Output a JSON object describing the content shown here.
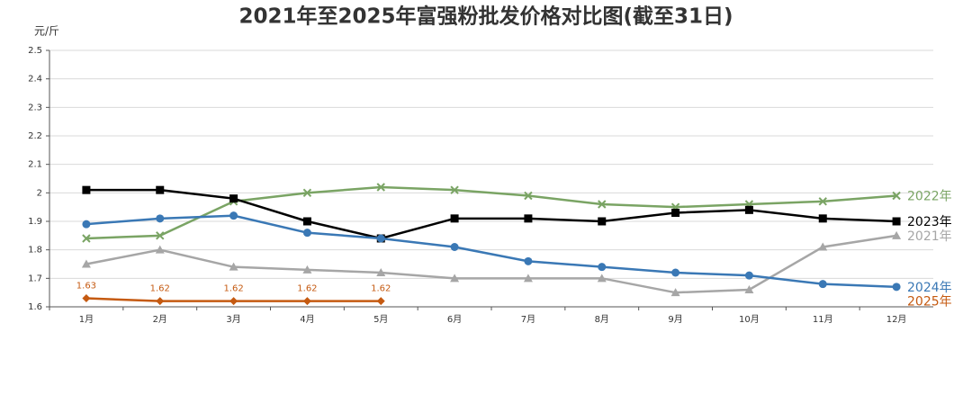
{
  "chart_data": {
    "type": "line",
    "title": "2021年至2025年富强粉批发价格对比图(截至31日)",
    "y_label": "元/斤",
    "categories": [
      "1月",
      "2月",
      "3月",
      "4月",
      "5月",
      "6月",
      "7月",
      "8月",
      "9月",
      "10月",
      "11月",
      "12月"
    ],
    "ylim": [
      1.6,
      2.5
    ],
    "yticks": [
      1.6,
      1.7,
      1.8,
      1.9,
      2,
      2.1,
      2.2,
      2.3,
      2.4,
      2.5
    ],
    "grid": true,
    "series": [
      {
        "name": "2022年",
        "color": "#7aa464",
        "marker": "x",
        "values": [
          1.84,
          1.85,
          1.97,
          2.0,
          2.02,
          2.01,
          1.99,
          1.96,
          1.95,
          1.96,
          1.97,
          1.99
        ]
      },
      {
        "name": "2023年",
        "color": "#000000",
        "marker": "square",
        "values": [
          2.01,
          2.01,
          1.98,
          1.9,
          1.84,
          1.91,
          1.91,
          1.9,
          1.93,
          1.94,
          1.91,
          1.9
        ]
      },
      {
        "name": "2021年",
        "color": "#a6a6a6",
        "marker": "triangle",
        "values": [
          1.75,
          1.8,
          1.74,
          1.73,
          1.72,
          1.7,
          1.7,
          1.7,
          1.65,
          1.66,
          1.81,
          1.85
        ]
      },
      {
        "name": "2024年",
        "color": "#3a78b5",
        "marker": "circle",
        "values": [
          1.89,
          1.91,
          1.92,
          1.86,
          1.84,
          1.81,
          1.76,
          1.74,
          1.72,
          1.71,
          1.68,
          1.67
        ]
      },
      {
        "name": "2025年",
        "color": "#c55a11",
        "marker": "diamond",
        "show_values": true,
        "values": [
          1.63,
          1.62,
          1.62,
          1.62,
          1.62,
          null,
          null,
          null,
          null,
          null,
          null,
          null
        ]
      }
    ]
  }
}
